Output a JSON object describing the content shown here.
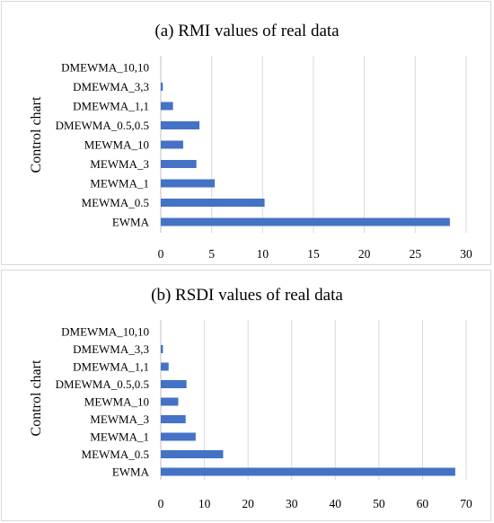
{
  "chart_data": [
    {
      "type": "bar",
      "orientation": "horizontal",
      "title": "(a) RMI values of real data",
      "xlabel": "",
      "ylabel": "Control chart",
      "categories": [
        "EWMA",
        "MEWMA_0.5",
        "MEWMA_1",
        "MEWMA_3",
        "MEWMA_10",
        "DMEWMA_0.5,0.5",
        "DMEWMA_1,1",
        "DMEWMA_3,3",
        "DMEWMA_10,10"
      ],
      "values": [
        28.4,
        10.2,
        5.3,
        3.5,
        2.2,
        3.8,
        1.2,
        0.2,
        0
      ],
      "xlim": [
        0,
        30
      ],
      "xticks": [
        "0",
        "5",
        "10",
        "15",
        "20",
        "25",
        "30"
      ],
      "xtick_values": [
        0,
        5,
        10,
        15,
        20,
        25,
        30
      ],
      "grid": true,
      "color": "#4472c4"
    },
    {
      "type": "bar",
      "orientation": "horizontal",
      "title": "(b) RSDI values of real data",
      "xlabel": "",
      "ylabel": "Control chart",
      "categories": [
        "EWMA",
        "MEWMA_0.5",
        "MEWMA_1",
        "MEWMA_3",
        "MEWMA_10",
        "DMEWMA_0.5,0.5",
        "DMEWMA_1,1",
        "DMEWMA_3,3",
        "DMEWMA_10,10"
      ],
      "values": [
        67.5,
        14.3,
        8.0,
        5.7,
        4.0,
        5.9,
        1.8,
        0.5,
        0
      ],
      "xlim": [
        0,
        70
      ],
      "xticks": [
        "0",
        "10",
        "20",
        "30",
        "40",
        "50",
        "60",
        "70"
      ],
      "xtick_values": [
        0,
        10,
        20,
        30,
        40,
        50,
        60,
        70
      ],
      "grid": true,
      "color": "#4472c4"
    }
  ]
}
